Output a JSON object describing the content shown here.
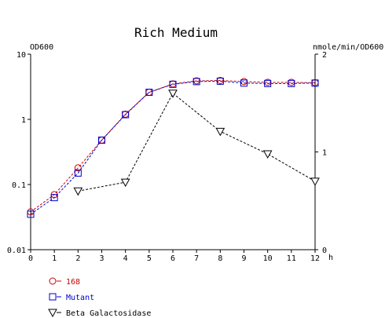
{
  "chart_data": {
    "type": "line",
    "title": "Rich Medium",
    "y_left_label": "OD600",
    "y_right_label": "nmole/min/OD600",
    "x_unit": "h",
    "x_ticks": [
      "0",
      "1",
      "2",
      "3",
      "4",
      "5",
      "6",
      "7",
      "8",
      "9",
      "10",
      "11",
      "12"
    ],
    "xlim": [
      0,
      12
    ],
    "y_left_scale": "log",
    "y_left_ticks": [
      "0.01",
      "0.1",
      "1",
      "10"
    ],
    "ylim_left": [
      0.01,
      10
    ],
    "y_right_scale": "linear",
    "y_right_ticks": [
      "0",
      "1",
      "2"
    ],
    "ylim_right": [
      0,
      2
    ],
    "grid": false,
    "series": [
      {
        "name": "168",
        "axis": "left",
        "marker": "circle",
        "color": "#cc0000",
        "x": [
          0,
          1,
          2,
          3,
          4,
          5,
          6,
          7,
          8,
          9,
          10,
          11,
          12
        ],
        "y": [
          0.038,
          0.07,
          0.18,
          0.48,
          1.2,
          2.6,
          3.5,
          3.9,
          3.95,
          3.8,
          3.7,
          3.7,
          3.65
        ]
      },
      {
        "name": "Mutant",
        "axis": "left",
        "marker": "square",
        "color": "#0000cc",
        "x": [
          0,
          1,
          2,
          3,
          4,
          5,
          6,
          7,
          8,
          9,
          10,
          11,
          12
        ],
        "y": [
          0.035,
          0.063,
          0.15,
          0.48,
          1.18,
          2.6,
          3.45,
          3.8,
          3.85,
          3.6,
          3.55,
          3.55,
          3.6
        ]
      },
      {
        "name": "Beta Galactosidase",
        "axis": "right",
        "marker": "triangle-down",
        "color": "#000000",
        "x": [
          2,
          4,
          6,
          8,
          10,
          12
        ],
        "y": [
          0.6,
          0.69,
          1.6,
          1.21,
          0.98,
          0.7
        ]
      }
    ]
  }
}
